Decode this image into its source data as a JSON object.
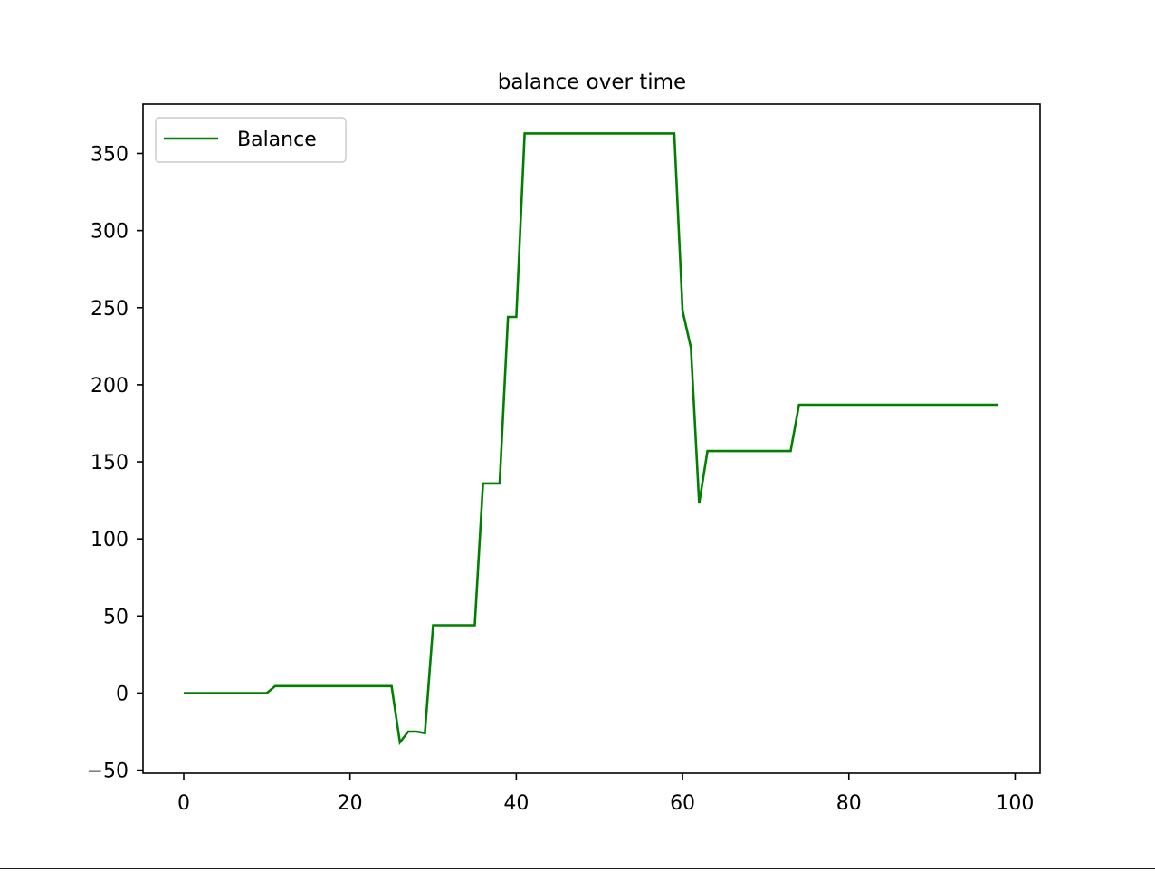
{
  "chart_data": {
    "type": "line",
    "title": "balance over time",
    "xlabel": "",
    "ylabel": "",
    "xlim": [
      -4.9,
      103
    ],
    "ylim": [
      -52,
      382
    ],
    "xticks": [
      0,
      20,
      40,
      60,
      80,
      100
    ],
    "yticks": [
      -50,
      0,
      50,
      100,
      150,
      200,
      250,
      300,
      350
    ],
    "xtick_labels": [
      "0",
      "20",
      "40",
      "60",
      "80",
      "100"
    ],
    "ytick_labels": [
      "−50",
      "0",
      "50",
      "100",
      "150",
      "200",
      "250",
      "300",
      "350"
    ],
    "grid": false,
    "legend_position": "upper-left",
    "series": [
      {
        "name": "Balance",
        "color": "#008000",
        "points": [
          [
            0,
            0
          ],
          [
            10,
            0
          ],
          [
            11,
            4.5
          ],
          [
            25,
            4.5
          ],
          [
            26,
            -32
          ],
          [
            27,
            -25
          ],
          [
            28,
            -25
          ],
          [
            29,
            -26
          ],
          [
            30,
            44
          ],
          [
            35,
            44
          ],
          [
            36,
            136
          ],
          [
            38,
            136
          ],
          [
            39,
            244
          ],
          [
            40,
            244
          ],
          [
            41,
            363
          ],
          [
            59,
            363
          ],
          [
            60,
            248
          ],
          [
            61,
            224
          ],
          [
            62,
            123
          ],
          [
            63,
            157
          ],
          [
            73,
            157
          ],
          [
            74,
            187
          ],
          [
            98,
            187
          ]
        ]
      }
    ]
  }
}
